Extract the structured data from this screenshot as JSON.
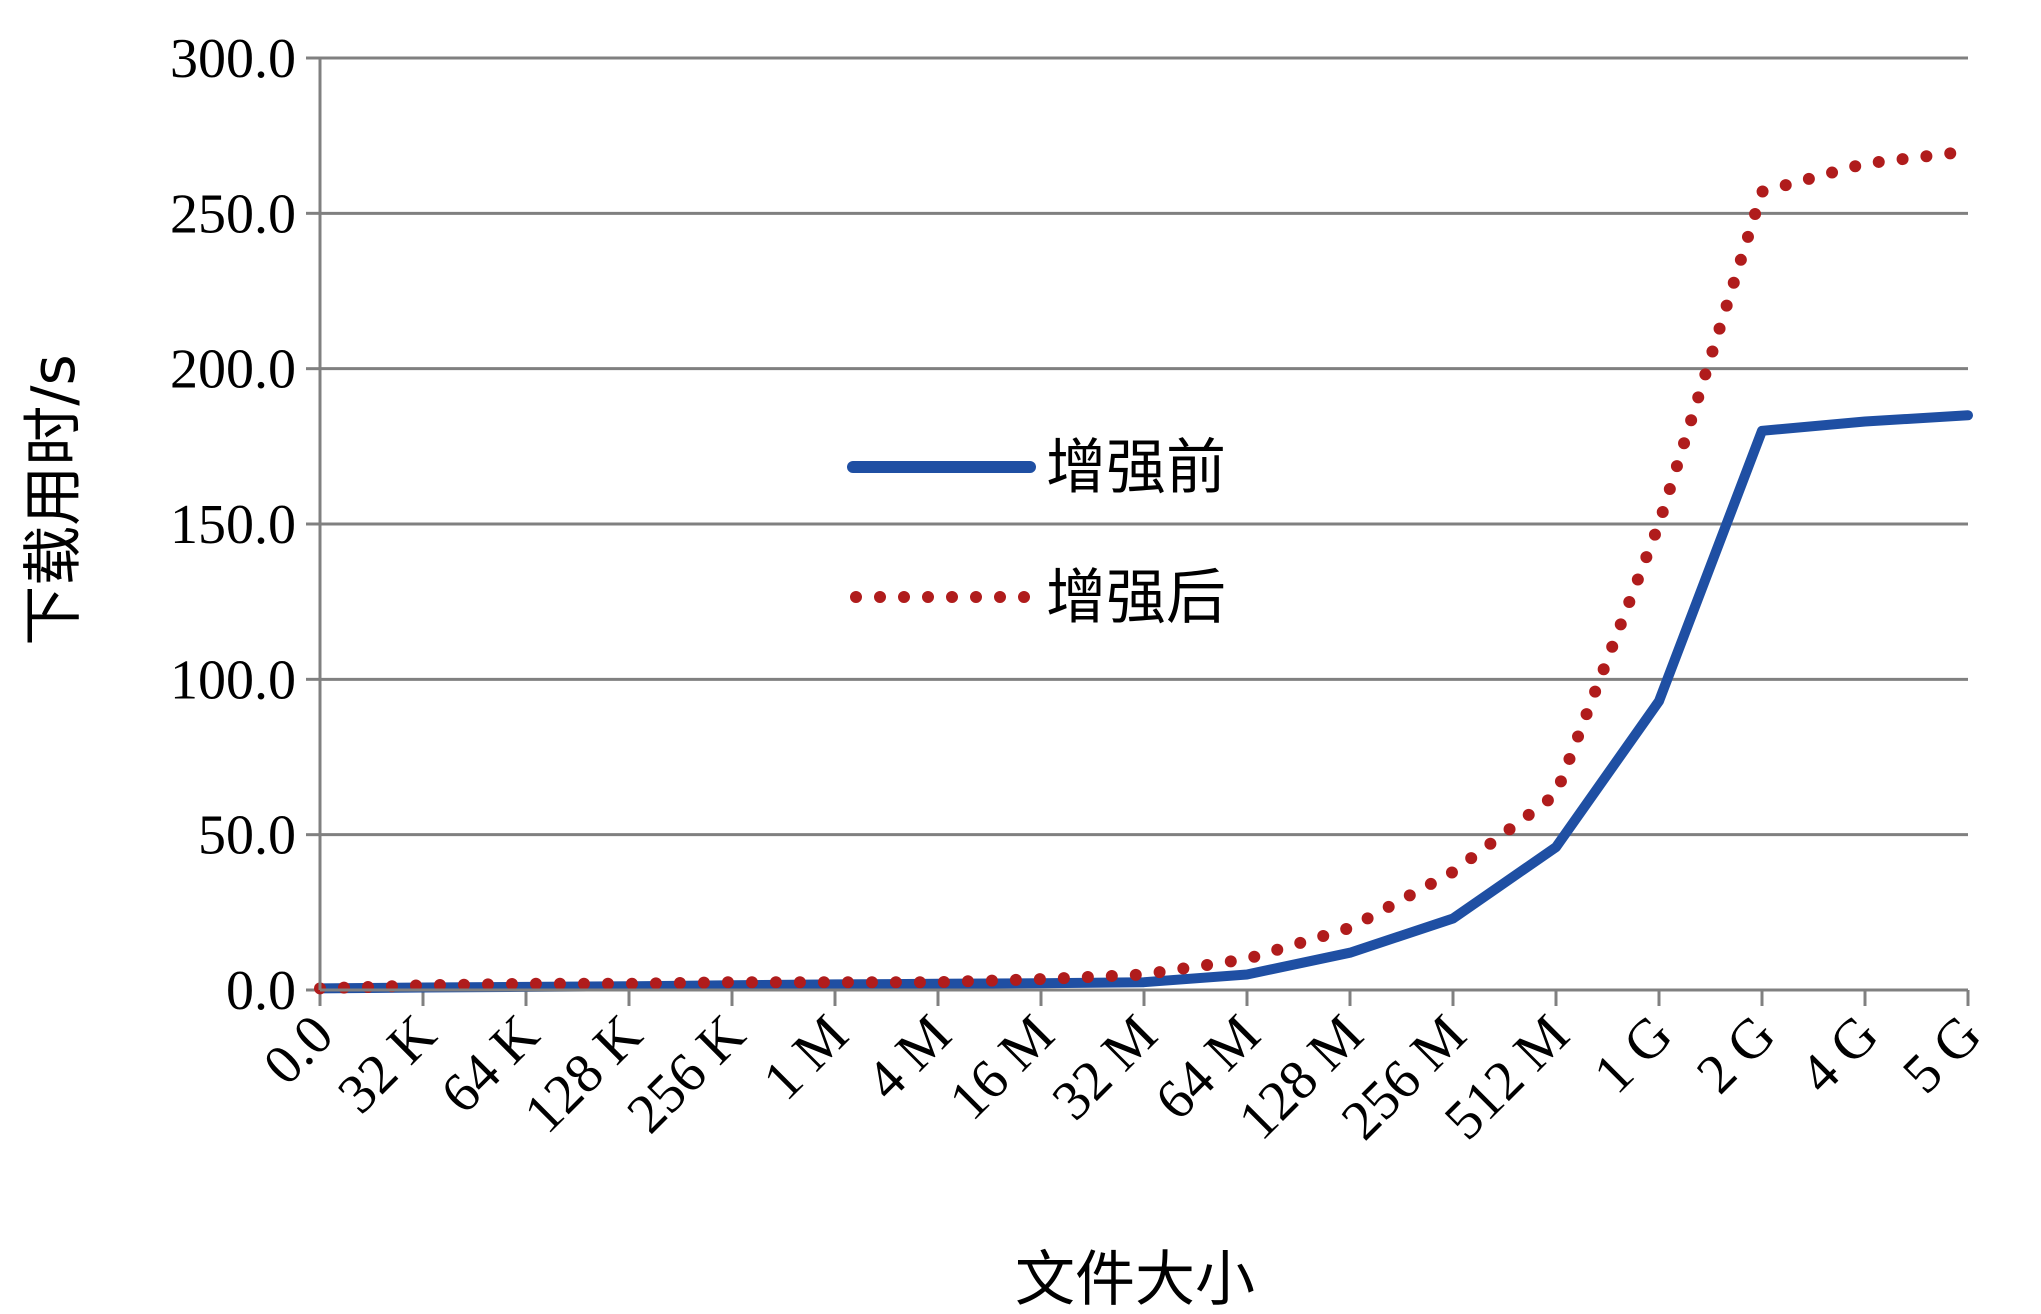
{
  "chart_data": {
    "type": "line",
    "xlabel": "文件大小",
    "ylabel": "下载用时/s",
    "categories": [
      "0.0",
      "32 K",
      "64 K",
      "128 K",
      "256 K",
      "1 M",
      "4 M",
      "16 M",
      "32 M",
      "64 M",
      "128 M",
      "256 M",
      "512 M",
      "1 G",
      "2 G",
      "4 G",
      "5 G"
    ],
    "ylim": [
      0,
      300
    ],
    "yticks": [
      "0.0",
      "50.0",
      "100.0",
      "150.0",
      "200.0",
      "250.0",
      "300.0"
    ],
    "grid": true,
    "legend_position": "center",
    "series": [
      {
        "name": "增强前",
        "style": "solid",
        "color": "#1f4fa3",
        "values": [
          0.5,
          0.8,
          1.0,
          1.2,
          1.5,
          1.8,
          2.0,
          2.2,
          2.5,
          5.0,
          12.0,
          23.0,
          46.0,
          93.0,
          180.0,
          183.0,
          185.0
        ]
      },
      {
        "name": "增强后",
        "style": "dotted",
        "color": "#b01c1c",
        "values": [
          0.5,
          1.5,
          2.0,
          2.0,
          2.5,
          2.5,
          2.5,
          3.5,
          5.0,
          10.0,
          20.0,
          38.0,
          63.0,
          150.0,
          257.0,
          266.0,
          270.0
        ]
      }
    ]
  }
}
